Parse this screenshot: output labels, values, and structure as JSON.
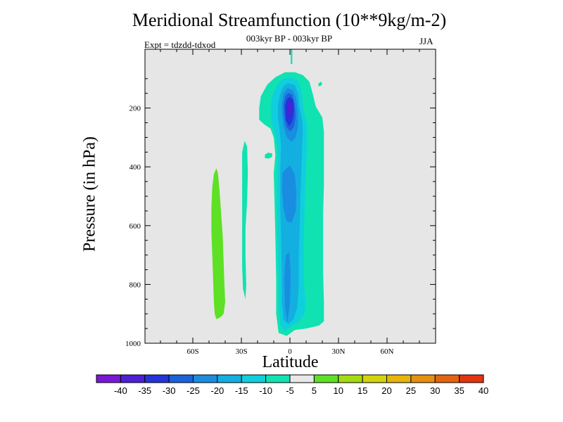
{
  "chart_data": {
    "type": "heatmap",
    "title": "Meridional Streamfunction (10**9kg/m-2)",
    "subtitle": "003kyr BP - 003kyr BP",
    "left_label": "Expt = tdzdd-tdxod",
    "right_label": "JJA",
    "xlabel": "Latitude",
    "ylabel": "Pressure (in hPa)",
    "xlim": [
      -90,
      90
    ],
    "ylim": [
      1000,
      0
    ],
    "x_ticks": [
      {
        "value": -60,
        "label": "60S"
      },
      {
        "value": -30,
        "label": "30S"
      },
      {
        "value": 0,
        "label": "0"
      },
      {
        "value": 30,
        "label": "30N"
      },
      {
        "value": 60,
        "label": "60N"
      }
    ],
    "y_ticks": [
      {
        "value": 200,
        "label": "200"
      },
      {
        "value": 400,
        "label": "400"
      },
      {
        "value": 600,
        "label": "600"
      },
      {
        "value": 800,
        "label": "800"
      },
      {
        "value": 1000,
        "label": "1000"
      }
    ],
    "background_color": "#e6e6e6",
    "colorbar": {
      "levels": [
        "-40",
        "-35",
        "-30",
        "-25",
        "-20",
        "-15",
        "-10",
        "-5",
        "5",
        "10",
        "15",
        "20",
        "25",
        "30",
        "35",
        "40"
      ],
      "colors": [
        "#7a17d9",
        "#4d1fd6",
        "#2533d9",
        "#1b62d9",
        "#1a8de0",
        "#12afe0",
        "#10cfdc",
        "#10e2b1",
        "#e8e8e8",
        "#5ee025",
        "#a4dc10",
        "#d3d30e",
        "#e6b50d",
        "#e69010",
        "#e46412",
        "#e23510"
      ]
    },
    "regions": [
      {
        "label": "cell SH +5 to +10",
        "color": "#5ee025",
        "polygon": [
          [
            -45.5,
            405
          ],
          [
            -44.5,
            420
          ],
          [
            -43.5,
            480
          ],
          [
            -42.5,
            560
          ],
          [
            -41.5,
            640
          ],
          [
            -41,
            720
          ],
          [
            -40.5,
            800
          ],
          [
            -40,
            860
          ],
          [
            -41,
            900
          ],
          [
            -43,
            912
          ],
          [
            -45.5,
            918
          ],
          [
            -46.5,
            900
          ],
          [
            -47,
            860
          ],
          [
            -47.5,
            780
          ],
          [
            -48,
            700
          ],
          [
            -48.5,
            620
          ],
          [
            -48.5,
            540
          ],
          [
            -48,
            470
          ],
          [
            -47,
            425
          ]
        ]
      },
      {
        "label": "cell 30S -10 to -5",
        "color": "#10e2b1",
        "polygon": [
          [
            -28,
            312
          ],
          [
            -26.5,
            330
          ],
          [
            -26,
            420
          ],
          [
            -26.5,
            520
          ],
          [
            -27.5,
            610
          ],
          [
            -27.5,
            700
          ],
          [
            -27,
            800
          ],
          [
            -27.5,
            850
          ],
          [
            -29,
            815
          ],
          [
            -29.5,
            740
          ],
          [
            -29.5,
            640
          ],
          [
            -29.5,
            560
          ],
          [
            -29.5,
            450
          ],
          [
            -29.5,
            350
          ]
        ]
      },
      {
        "label": "small cell 15S",
        "color": "#10e2b1",
        "polygon": [
          [
            -15.5,
            358
          ],
          [
            -13.5,
            352
          ],
          [
            -11,
            354
          ],
          [
            -11,
            366
          ],
          [
            -13,
            372
          ],
          [
            -15.5,
            370
          ]
        ]
      },
      {
        "label": "small cell 20N",
        "color": "#10e2b1",
        "polygon": [
          [
            17.5,
            118
          ],
          [
            19,
            110
          ],
          [
            20,
            118
          ],
          [
            19,
            125
          ],
          [
            17.5,
            125
          ]
        ]
      },
      {
        "label": "top tendril",
        "color": "#10e2b1",
        "polygon": [
          [
            0.5,
            0
          ],
          [
            1.5,
            0
          ],
          [
            1.5,
            50
          ],
          [
            0.5,
            50
          ]
        ]
      },
      {
        "label": "outer -10 to -5",
        "color": "#10e2b1",
        "polygon": [
          [
            -19,
            200
          ],
          [
            -18,
            160
          ],
          [
            -14,
            120
          ],
          [
            -9,
            95
          ],
          [
            -3,
            78
          ],
          [
            3,
            78
          ],
          [
            8,
            88
          ],
          [
            12,
            110
          ],
          [
            14,
            150
          ],
          [
            16,
            195
          ],
          [
            20,
            232
          ],
          [
            21,
            280
          ],
          [
            21,
            360
          ],
          [
            21,
            460
          ],
          [
            20.5,
            560
          ],
          [
            20.5,
            660
          ],
          [
            20.5,
            760
          ],
          [
            21,
            860
          ],
          [
            21,
            925
          ],
          [
            18,
            940
          ],
          [
            10,
            950
          ],
          [
            3,
            955
          ],
          [
            -2,
            975
          ],
          [
            -7,
            965
          ],
          [
            -8.5,
            900
          ],
          [
            -8.5,
            780
          ],
          [
            -9,
            640
          ],
          [
            -9.5,
            520
          ],
          [
            -10,
            420
          ],
          [
            -9,
            360
          ],
          [
            -10,
            300
          ],
          [
            -12,
            270
          ],
          [
            -16,
            255
          ],
          [
            -19,
            240
          ]
        ]
      },
      {
        "label": "-15 to -10",
        "color": "#10cfdc",
        "polygon": [
          [
            -12,
            200
          ],
          [
            -11,
            160
          ],
          [
            -8,
            120
          ],
          [
            -4,
            100
          ],
          [
            1,
            96
          ],
          [
            5,
            108
          ],
          [
            7,
            140
          ],
          [
            8,
            190
          ],
          [
            9,
            220
          ],
          [
            10.5,
            260
          ],
          [
            10.5,
            340
          ],
          [
            9.5,
            460
          ],
          [
            9,
            560
          ],
          [
            8.5,
            660
          ],
          [
            8.5,
            780
          ],
          [
            9.5,
            860
          ],
          [
            9,
            900
          ],
          [
            5,
            930
          ],
          [
            0,
            945
          ],
          [
            -3,
            960
          ],
          [
            -6,
            935
          ],
          [
            -7,
            880
          ],
          [
            -7,
            780
          ],
          [
            -7.5,
            660
          ],
          [
            -8,
            540
          ],
          [
            -8,
            440
          ],
          [
            -7.5,
            370
          ],
          [
            -8,
            320
          ],
          [
            -9.5,
            280
          ],
          [
            -11.5,
            250
          ]
        ]
      },
      {
        "label": "-20 to -15",
        "color": "#12afe0",
        "polygon": [
          [
            -7.5,
            190
          ],
          [
            -6,
            150
          ],
          [
            -4,
            125
          ],
          [
            -1,
            115
          ],
          [
            3,
            122
          ],
          [
            5,
            150
          ],
          [
            6,
            200
          ],
          [
            7.5,
            240
          ],
          [
            8,
            280
          ],
          [
            7.5,
            330
          ],
          [
            7,
            420
          ],
          [
            6.5,
            500
          ],
          [
            6,
            600
          ],
          [
            5.5,
            700
          ],
          [
            5.5,
            800
          ],
          [
            4.5,
            880
          ],
          [
            2,
            920
          ],
          [
            -1,
            935
          ],
          [
            -4,
            920
          ],
          [
            -5,
            860
          ],
          [
            -5,
            760
          ],
          [
            -5.5,
            640
          ],
          [
            -6,
            520
          ],
          [
            -6,
            420
          ],
          [
            -5.5,
            330
          ],
          [
            -6.5,
            270
          ],
          [
            -7.5,
            230
          ]
        ]
      },
      {
        "label": "-25 to -20 upper",
        "color": "#1a8de0",
        "polygon": [
          [
            -5,
            185
          ],
          [
            -4,
            150
          ],
          [
            -1.5,
            132
          ],
          [
            2,
            140
          ],
          [
            4,
            170
          ],
          [
            5,
            215
          ],
          [
            5,
            265
          ],
          [
            3.5,
            300
          ],
          [
            1,
            315
          ],
          [
            -2,
            300
          ],
          [
            -4,
            260
          ],
          [
            -5,
            220
          ]
        ]
      },
      {
        "label": "-25 to -20 mid",
        "color": "#1a8de0",
        "polygon": [
          [
            -3,
            410
          ],
          [
            0,
            395
          ],
          [
            3,
            425
          ],
          [
            4,
            490
          ],
          [
            3.5,
            550
          ],
          [
            1,
            590
          ],
          [
            -2,
            585
          ],
          [
            -4,
            540
          ],
          [
            -5,
            470
          ],
          [
            -4.5,
            420
          ]
        ]
      },
      {
        "label": "-25 to -20 low",
        "color": "#1a8de0",
        "polygon": [
          [
            -2.5,
            700
          ],
          [
            -0.5,
            690
          ],
          [
            0.5,
            760
          ],
          [
            0,
            860
          ],
          [
            -1.5,
            930
          ],
          [
            -3,
            880
          ],
          [
            -3.5,
            780
          ]
        ]
      },
      {
        "label": "-30 to -25",
        "color": "#1b62d9",
        "polygon": [
          [
            -4,
            190
          ],
          [
            -3,
            160
          ],
          [
            -1,
            148
          ],
          [
            1.5,
            155
          ],
          [
            3,
            190
          ],
          [
            3.5,
            230
          ],
          [
            2.5,
            265
          ],
          [
            0,
            280
          ],
          [
            -2.5,
            262
          ],
          [
            -3.5,
            230
          ]
        ]
      },
      {
        "label": "-35 to -30",
        "color": "#2533d9",
        "polygon": [
          [
            -3,
            195
          ],
          [
            -2,
            170
          ],
          [
            0,
            162
          ],
          [
            2,
            172
          ],
          [
            2.5,
            210
          ],
          [
            1.5,
            245
          ],
          [
            -0.5,
            262
          ],
          [
            -2.5,
            242
          ]
        ]
      },
      {
        "label": "-40 to -35",
        "color": "#4d1fd6",
        "polygon": [
          [
            -1.5,
            190
          ],
          [
            -0.5,
            175
          ],
          [
            1,
            180
          ],
          [
            1.5,
            208
          ],
          [
            0.5,
            230
          ],
          [
            -1,
            218
          ]
        ]
      }
    ]
  }
}
